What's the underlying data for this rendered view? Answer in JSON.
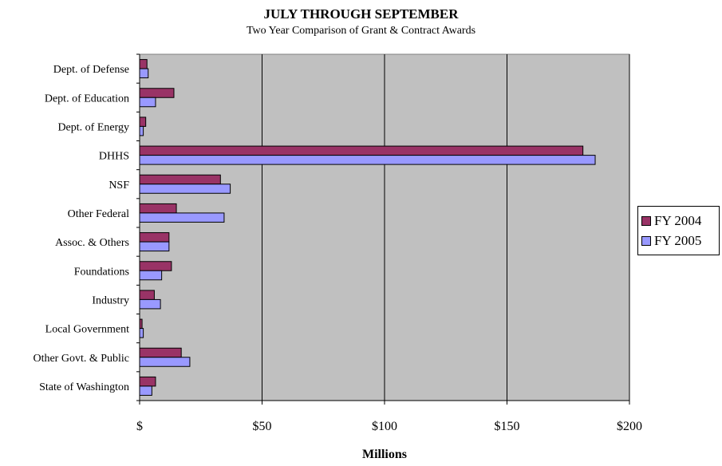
{
  "chart_data": {
    "type": "bar",
    "orientation": "horizontal",
    "title": "JULY THROUGH SEPTEMBER",
    "subtitle": "Two Year Comparison of Grant & Contract Awards",
    "xlabel": "Millions",
    "ylabel": "",
    "xlim": [
      0,
      200
    ],
    "x_ticks": [
      0,
      50,
      100,
      150,
      200
    ],
    "x_tick_labels": [
      "$",
      "$50",
      "$100",
      "$150",
      "$200"
    ],
    "grid": "vertical",
    "legend_position": "right",
    "plot_background": "#c0c0c0",
    "categories": [
      "Dept. of Defense",
      "Dept. of Education",
      "Dept. of Energy",
      "DHHS",
      "NSF",
      "Other Federal",
      "Assoc. & Others",
      "Foundations",
      "Industry",
      "Local Government",
      "Other Govt. & Public",
      "State of Washington"
    ],
    "series": [
      {
        "name": "FY 2004",
        "color": "#993366",
        "values": [
          3,
          14,
          2.5,
          181,
          33,
          15,
          12,
          13,
          6,
          1,
          17,
          6.5
        ]
      },
      {
        "name": "FY 2005",
        "color": "#9999ff",
        "values": [
          3.5,
          6.5,
          1.5,
          186,
          37,
          34.5,
          12,
          9,
          8.5,
          1.5,
          20.5,
          5
        ]
      }
    ]
  }
}
